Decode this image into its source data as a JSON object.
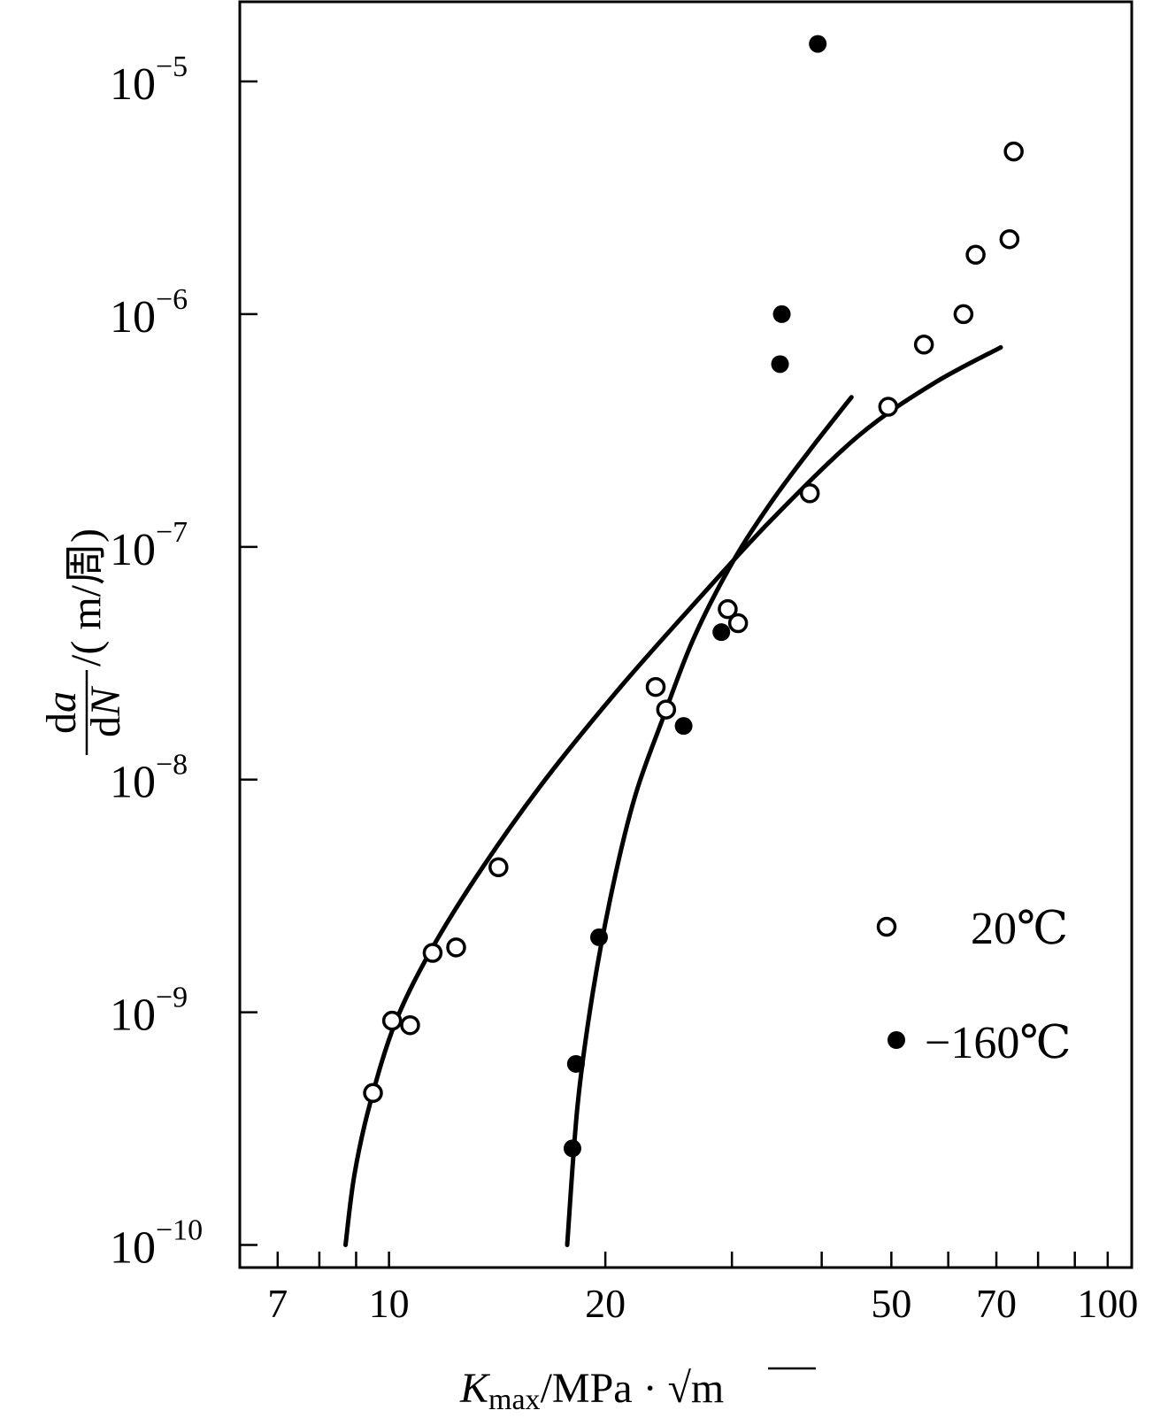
{
  "chart_data": {
    "type": "scatter",
    "x_scale": "log",
    "y_scale": "log",
    "xlim": [
      6.2,
      108
    ],
    "ylim": [
      8e-11,
      2.2e-05
    ],
    "x_ticks_labeled": [
      {
        "value": 7,
        "label": "7"
      },
      {
        "value": 10,
        "label": "10"
      },
      {
        "value": 20,
        "label": "20"
      },
      {
        "value": 50,
        "label": "50"
      },
      {
        "value": 70,
        "label": "70"
      },
      {
        "value": 100,
        "label": "100"
      }
    ],
    "x_ticks_minor": [
      8,
      9,
      30,
      40,
      60,
      80,
      90
    ],
    "y_ticks": [
      {
        "value": 1e-10,
        "mantissa": "10",
        "exponent": "−10"
      },
      {
        "value": 1e-09,
        "mantissa": "10",
        "exponent": "−9"
      },
      {
        "value": 1e-08,
        "mantissa": "10",
        "exponent": "−8"
      },
      {
        "value": 1e-07,
        "mantissa": "10",
        "exponent": "−7"
      },
      {
        "value": 1e-06,
        "mantissa": "10",
        "exponent": "−6"
      },
      {
        "value": 1e-05,
        "mantissa": "10",
        "exponent": "−5"
      }
    ],
    "xlabel": {
      "k": "K",
      "sub": "max",
      "unit": "/MPa · ",
      "root": "√",
      "m": "m"
    },
    "ylabel": {
      "num_d": "d",
      "num_a": "a",
      "den_d": "d",
      "den_n": "N",
      "unit": "/( m/周)"
    },
    "grid": false,
    "legend_position": "right",
    "series": [
      {
        "name": "20℃",
        "marker": "open-circle",
        "points": [
          [
            9.5,
            4.5e-10
          ],
          [
            10.1,
            9.2e-10
          ],
          [
            10.7,
            8.8e-10
          ],
          [
            11.5,
            1.8e-09
          ],
          [
            12.4,
            1.9e-09
          ],
          [
            14.2,
            4.2e-09
          ],
          [
            23.5,
            2.5e-08
          ],
          [
            24.3,
            2e-08
          ],
          [
            29.6,
            5.4e-08
          ],
          [
            30.6,
            4.7e-08
          ],
          [
            38.5,
            1.7e-07
          ],
          [
            49.5,
            4e-07
          ],
          [
            55.5,
            7.4e-07
          ],
          [
            63.0,
            1e-06
          ],
          [
            65.5,
            1.8e-06
          ],
          [
            73.0,
            2.1e-06
          ],
          [
            74.0,
            5e-06
          ]
        ],
        "curve": [
          [
            8.7,
            1e-10
          ],
          [
            8.95,
            2e-10
          ],
          [
            9.4,
            4e-10
          ],
          [
            10.2,
            9e-10
          ],
          [
            11.5,
            1.9e-09
          ],
          [
            13.5,
            4.2e-09
          ],
          [
            16.5,
            1e-08
          ],
          [
            21.0,
            2.5e-08
          ],
          [
            27.0,
            6e-08
          ],
          [
            34.0,
            1.3e-07
          ],
          [
            45.0,
            3e-07
          ],
          [
            57.0,
            5e-07
          ],
          [
            71.0,
            7.2e-07
          ]
        ]
      },
      {
        "name": "−160℃",
        "marker": "filled-circle",
        "points": [
          [
            18.0,
            2.6e-10
          ],
          [
            18.2,
            6e-10
          ],
          [
            19.6,
            2.1e-09
          ],
          [
            25.7,
            1.7e-08
          ],
          [
            29.0,
            4.3e-08
          ],
          [
            35.0,
            6.1e-07
          ],
          [
            35.2,
            1e-06
          ],
          [
            39.5,
            1.45e-05
          ]
        ],
        "curve": [
          [
            17.7,
            1e-10
          ],
          [
            18.3,
            4e-10
          ],
          [
            19.2,
            1.2e-09
          ],
          [
            20.5,
            3.5e-09
          ],
          [
            22.0,
            8.5e-09
          ],
          [
            24.0,
            1.8e-08
          ],
          [
            26.5,
            4e-08
          ],
          [
            30.0,
            8.5e-08
          ],
          [
            34.0,
            1.55e-07
          ],
          [
            38.5,
            2.6e-07
          ],
          [
            44.0,
            4.4e-07
          ]
        ]
      }
    ]
  }
}
